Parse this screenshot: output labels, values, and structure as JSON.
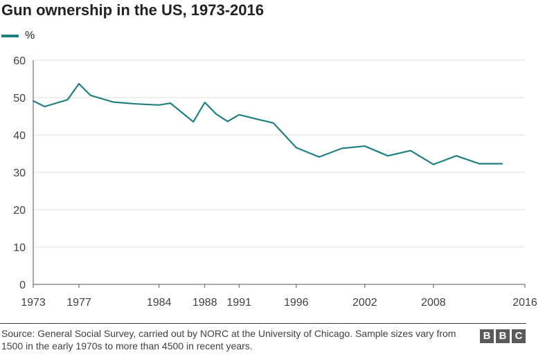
{
  "chart_data": {
    "type": "line",
    "title": "Gun ownership in the US, 1973-2016",
    "xlabel": "",
    "ylabel": "",
    "legend_position": "top-left",
    "grid": true,
    "xlim": [
      1973,
      2016
    ],
    "ylim": [
      0,
      60
    ],
    "yticks": [
      0,
      10,
      20,
      30,
      40,
      50,
      60
    ],
    "xticks": [
      "1973",
      "1977",
      "1984",
      "1988",
      "1991",
      "1996",
      "2002",
      "2008",
      "2016"
    ],
    "series": [
      {
        "name": "%",
        "color": "#1f7f7f",
        "points": [
          [
            1973,
            49.1
          ],
          [
            1974,
            47.6
          ],
          [
            1976,
            49.4
          ],
          [
            1977,
            53.7
          ],
          [
            1978,
            50.6
          ],
          [
            1980,
            48.8
          ],
          [
            1982,
            48.3
          ],
          [
            1984,
            48.0
          ],
          [
            1985,
            48.5
          ],
          [
            1987,
            43.5
          ],
          [
            1988,
            48.7
          ],
          [
            1989,
            45.6
          ],
          [
            1990,
            43.6
          ],
          [
            1991,
            45.4
          ],
          [
            1993,
            43.9
          ],
          [
            1994,
            43.2
          ],
          [
            1996,
            36.6
          ],
          [
            1998,
            34.1
          ],
          [
            2000,
            36.4
          ],
          [
            2002,
            37.0
          ],
          [
            2004,
            34.4
          ],
          [
            2006,
            35.8
          ],
          [
            2008,
            32.1
          ],
          [
            2010,
            34.4
          ],
          [
            2012,
            32.3
          ],
          [
            2014,
            32.3
          ]
        ]
      }
    ]
  },
  "source_text": "Source: General Social Survey, carried out by NORC at the University of Chicago. Sample sizes vary from 1500 in the early 1970s to more than 4500 in recent years.",
  "logo": {
    "letters": [
      "B",
      "B",
      "C"
    ]
  }
}
